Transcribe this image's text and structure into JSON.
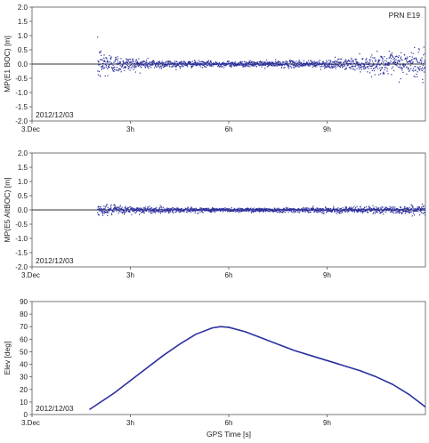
{
  "chart_data": [
    {
      "type": "scatter",
      "panel": "mp-e1",
      "ylabel": "MP(E1 BOC) [m]",
      "ylim": [
        -2.0,
        2.0
      ],
      "yticks": [
        "2.0",
        "1.5",
        "1.0",
        "0.5",
        "0.0",
        "-0.5",
        "-1.0",
        "-1.5",
        "-2.0"
      ],
      "xlim_hours": [
        0,
        12
      ],
      "xticks": [
        "3.Dec",
        "3h",
        "6h",
        "9h"
      ],
      "date_label": "2012/12/03",
      "annotation": "PRN E19",
      "zero_line": true,
      "series": [
        {
          "color": "#2b2f9e",
          "x": [
            2.0,
            2.25,
            2.5,
            3,
            3.5,
            4,
            4.5,
            5,
            5.5,
            6,
            6.5,
            7,
            7.5,
            8,
            8.5,
            9,
            9.5,
            10,
            10.5,
            11,
            11.5,
            12
          ],
          "spread_m": [
            0.85,
            0.6,
            0.4,
            0.3,
            0.22,
            0.18,
            0.15,
            0.13,
            0.12,
            0.12,
            0.12,
            0.13,
            0.14,
            0.15,
            0.16,
            0.18,
            0.22,
            0.3,
            0.38,
            0.48,
            0.6,
            0.8
          ]
        }
      ]
    },
    {
      "type": "scatter",
      "panel": "mp-e5",
      "ylabel": "MP(E5 AltBOC) [m]",
      "ylim": [
        -2.0,
        2.0
      ],
      "yticks": [
        "2.0",
        "1.5",
        "1.0",
        "0.5",
        "0.0",
        "-0.5",
        "-1.0",
        "-1.5",
        "-2.0"
      ],
      "xlim_hours": [
        0,
        12
      ],
      "xticks": [
        "3.Dec",
        "3h",
        "6h",
        "9h"
      ],
      "date_label": "2012/12/03",
      "zero_line": true,
      "series": [
        {
          "color": "#2b2f9e",
          "x": [
            2.0,
            3,
            4,
            5,
            6,
            7,
            8,
            9,
            10,
            11,
            12
          ],
          "spread_m": [
            0.22,
            0.16,
            0.12,
            0.1,
            0.09,
            0.09,
            0.1,
            0.11,
            0.13,
            0.16,
            0.2
          ]
        }
      ]
    },
    {
      "type": "line",
      "panel": "elevation",
      "ylabel": "Elev [deg]",
      "xlabel": "GPS Time [s]",
      "ylim": [
        0,
        90
      ],
      "yticks": [
        "90",
        "80",
        "70",
        "60",
        "50",
        "40",
        "30",
        "20",
        "10",
        "0"
      ],
      "xlim_hours": [
        0,
        12
      ],
      "xticks": [
        "3.Dec",
        "3h",
        "6h",
        "9h"
      ],
      "date_label": "2012/12/03",
      "series": [
        {
          "color": "#2b2f9e",
          "x": [
            1.75,
            2.5,
            3.0,
            3.5,
            4.0,
            4.5,
            5.0,
            5.5,
            5.75,
            6.0,
            6.5,
            7.0,
            7.5,
            8.0,
            8.5,
            9.0,
            9.5,
            10.0,
            10.5,
            11.0,
            11.5,
            12.0
          ],
          "y": [
            4,
            17,
            27,
            37,
            47,
            56,
            64,
            69,
            70,
            69.5,
            66,
            61,
            56,
            51,
            47,
            43,
            39,
            35,
            30,
            24,
            16,
            6
          ]
        }
      ]
    }
  ]
}
